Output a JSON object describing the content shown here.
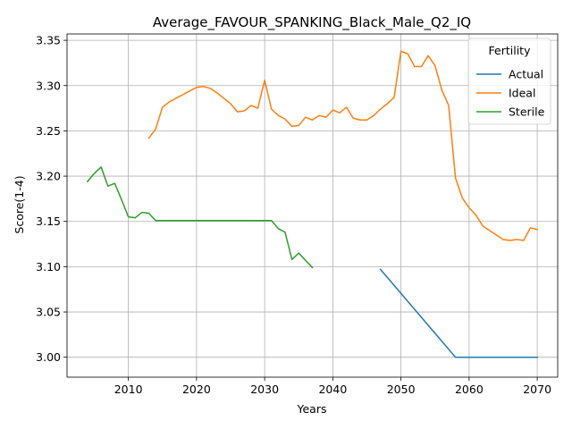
{
  "chart_data": {
    "type": "line",
    "title": "Average_FAVOUR_SPANKING_Black_Male_Q2_IQ",
    "xlabel": "Years",
    "ylabel": "Score(1-4)",
    "xlim": [
      2001,
      2073
    ],
    "ylim": [
      2.978,
      3.357
    ],
    "xticks": [
      2010,
      2020,
      2030,
      2040,
      2050,
      2060,
      2070
    ],
    "yticks": [
      3.0,
      3.05,
      3.1,
      3.15,
      3.2,
      3.25,
      3.3,
      3.35
    ],
    "grid": true,
    "legend": {
      "title": "Fertility",
      "placement": "top-right"
    },
    "series": [
      {
        "name": "Actual",
        "color": "#1f77b4",
        "x": [
          2047,
          2058,
          2070
        ],
        "y": [
          3.097,
          3.0,
          3.0
        ]
      },
      {
        "name": "Ideal",
        "color": "#ff7f0e",
        "x": [
          2013,
          2014,
          2015,
          2016,
          2017,
          2018,
          2019,
          2020,
          2021,
          2022,
          2023,
          2024,
          2025,
          2026,
          2027,
          2028,
          2029,
          2030,
          2031,
          2032,
          2033,
          2034,
          2035,
          2036,
          2037,
          2038,
          2039,
          2040,
          2041,
          2042,
          2043,
          2044,
          2045,
          2046,
          2047,
          2048,
          2049,
          2050,
          2051,
          2052,
          2053,
          2054,
          2055,
          2056,
          2057,
          2058,
          2059,
          2060,
          2061,
          2062,
          2063,
          2064,
          2065,
          2066,
          2067,
          2068,
          2069,
          2070
        ],
        "y": [
          3.242,
          3.252,
          3.276,
          3.282,
          3.286,
          3.29,
          3.294,
          3.298,
          3.299,
          3.297,
          3.292,
          3.286,
          3.28,
          3.271,
          3.272,
          3.278,
          3.275,
          3.306,
          3.274,
          3.267,
          3.263,
          3.255,
          3.256,
          3.265,
          3.262,
          3.267,
          3.265,
          3.273,
          3.27,
          3.276,
          3.264,
          3.262,
          3.262,
          3.267,
          3.274,
          3.28,
          3.287,
          3.338,
          3.335,
          3.321,
          3.321,
          3.333,
          3.322,
          3.295,
          3.278,
          3.198,
          3.176,
          3.165,
          3.157,
          3.145,
          3.14,
          3.135,
          3.13,
          3.129,
          3.13,
          3.129,
          3.143,
          3.141
        ]
      },
      {
        "name": "Sterile",
        "color": "#2ca02c",
        "x": [
          2004,
          2005,
          2006,
          2007,
          2008,
          2009,
          2010,
          2011,
          2012,
          2013,
          2014,
          2015,
          2016,
          2017,
          2018,
          2019,
          2020,
          2021,
          2022,
          2023,
          2024,
          2025,
          2026,
          2027,
          2028,
          2029,
          2030,
          2031,
          2032,
          2033,
          2034,
          2035,
          2036,
          2037
        ],
        "y": [
          3.194,
          3.203,
          3.21,
          3.189,
          3.192,
          3.174,
          3.155,
          3.154,
          3.16,
          3.159,
          3.151,
          3.151,
          3.151,
          3.151,
          3.151,
          3.151,
          3.151,
          3.151,
          3.151,
          3.151,
          3.151,
          3.151,
          3.151,
          3.151,
          3.151,
          3.151,
          3.151,
          3.151,
          3.142,
          3.138,
          3.108,
          3.115,
          3.107,
          3.099
        ]
      }
    ]
  }
}
